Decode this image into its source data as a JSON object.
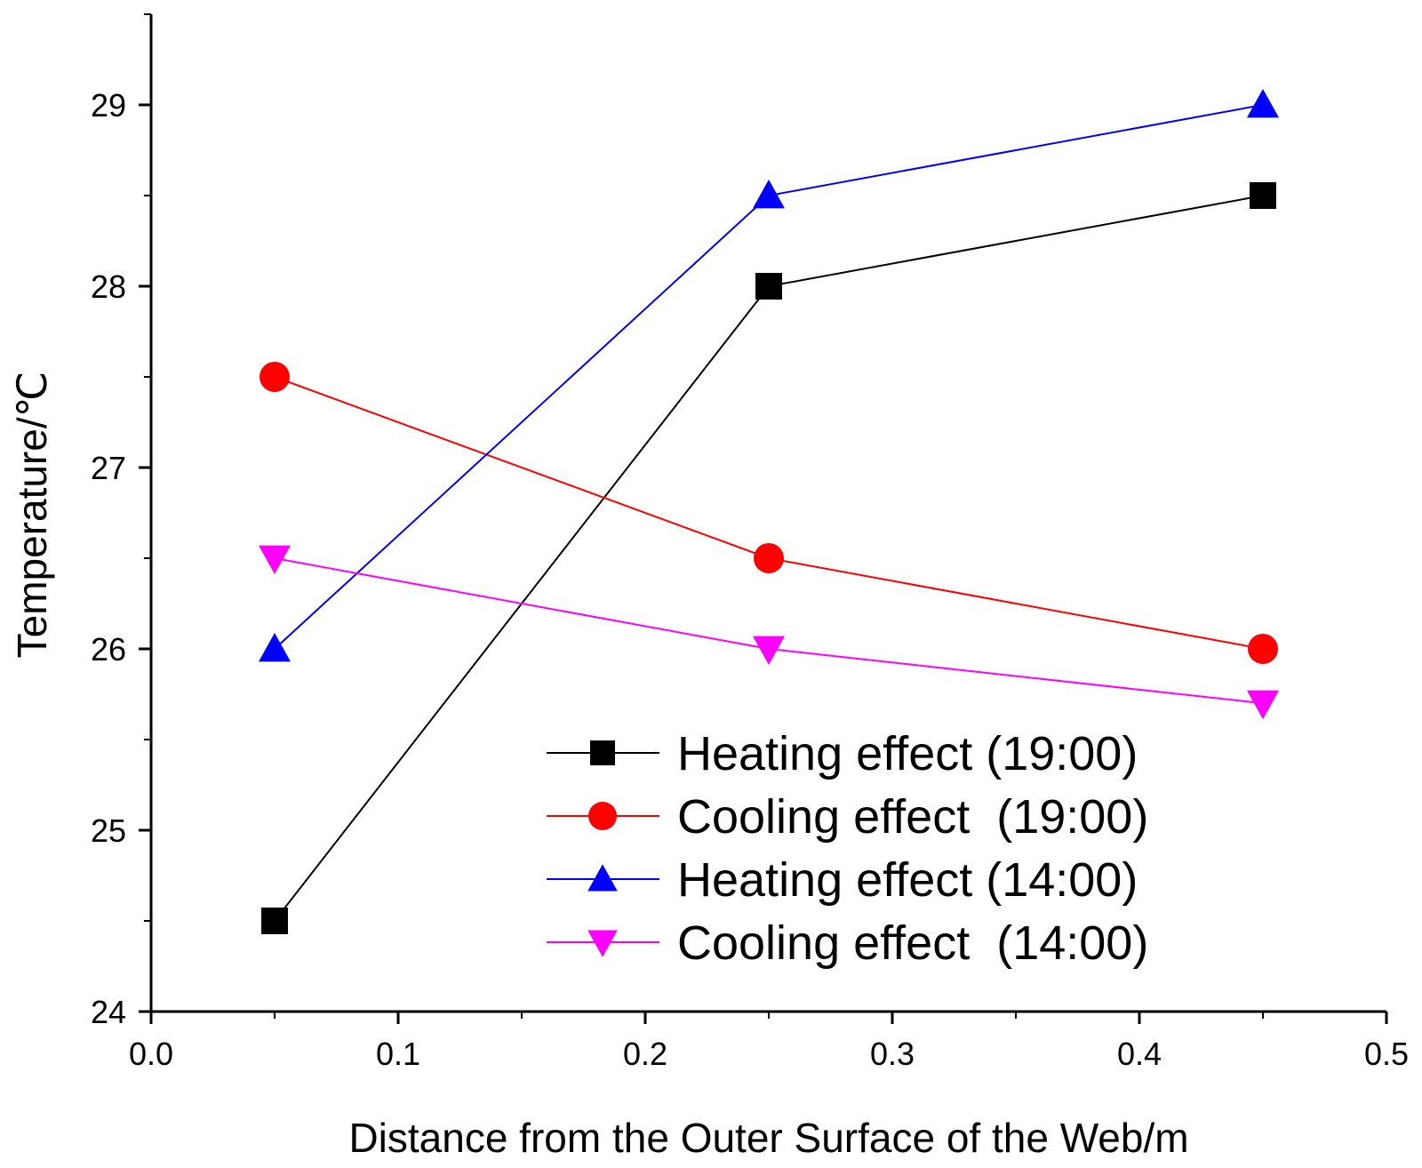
{
  "chart_data": {
    "type": "line",
    "xlabel": "Distance from the Outer Surface of the Web/m",
    "ylabel": "Temperature/℃",
    "xlim": [
      0.0,
      0.5
    ],
    "ylim": [
      24,
      29.5
    ],
    "xticks": [
      0.0,
      0.1,
      0.2,
      0.3,
      0.4,
      0.5
    ],
    "xtick_labels": [
      "0.0",
      "0.1",
      "0.2",
      "0.3",
      "0.4",
      "0.5"
    ],
    "yticks": [
      24,
      25,
      26,
      27,
      28,
      29
    ],
    "ytick_labels": [
      "24",
      "25",
      "26",
      "27",
      "28",
      "29"
    ],
    "grid": false,
    "legend_position": "bottom-right",
    "x": [
      0.05,
      0.25,
      0.45
    ],
    "series": [
      {
        "name": "Heating effect (19:00)",
        "color": "#000000",
        "marker": "square",
        "values": [
          24.5,
          28.0,
          28.5
        ]
      },
      {
        "name": "Cooling effect  (19:00)",
        "color": "#ff0000",
        "marker": "circle",
        "values": [
          27.5,
          26.5,
          26.0
        ]
      },
      {
        "name": "Heating effect (14:00)",
        "color": "#0000ff",
        "marker": "triangle-up",
        "values": [
          26.0,
          28.5,
          29.0
        ]
      },
      {
        "name": "Cooling effect  (14:00)",
        "color": "#ff00ff",
        "marker": "triangle-down",
        "values": [
          26.5,
          26.0,
          25.7
        ]
      }
    ]
  }
}
